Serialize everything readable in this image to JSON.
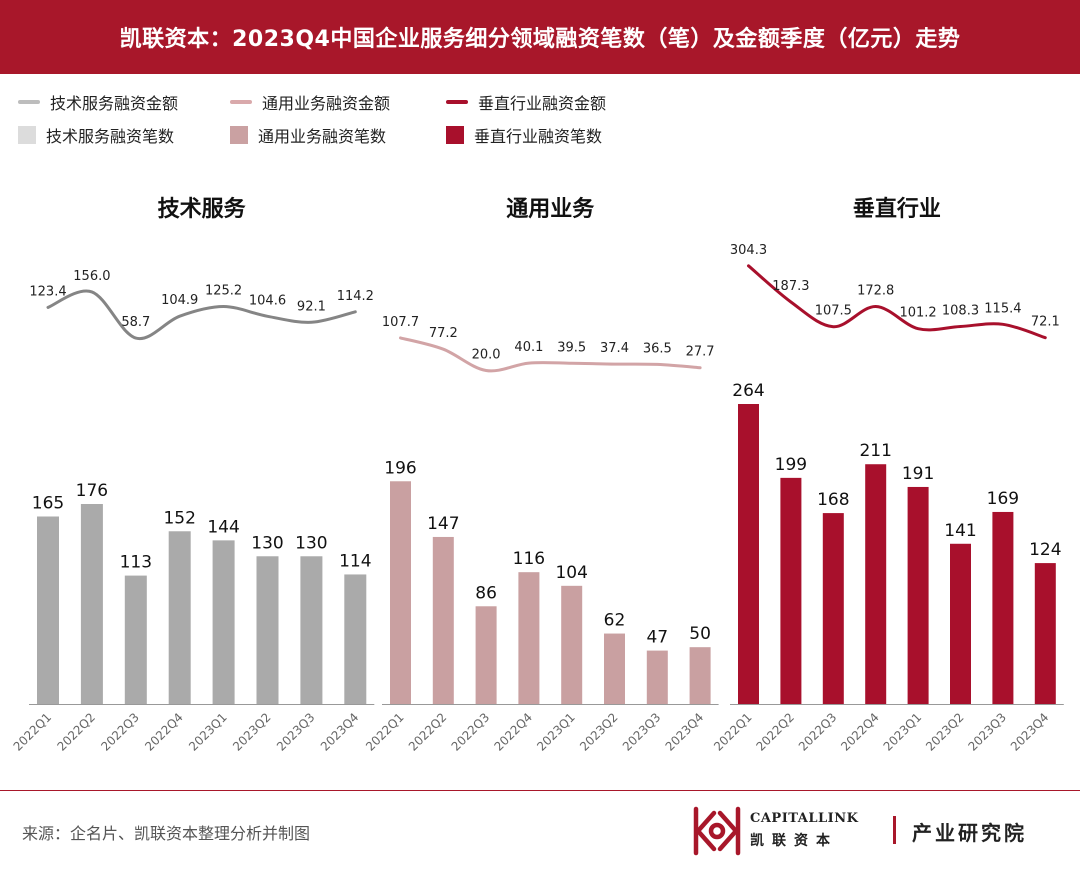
{
  "title": "凯联资本：2023Q4中国企业服务细分领域融资笔数（笔）及金额季度（亿元）走势",
  "legend": [
    {
      "label": "技术服务融资金额",
      "kind": "line",
      "color": "#bdbdbd"
    },
    {
      "label": "通用业务融资金额",
      "kind": "line",
      "color": "#d9a9ab"
    },
    {
      "label": "垂直行业融资金额",
      "kind": "line",
      "color": "#a8102c"
    },
    {
      "label": "技术服务融资笔数",
      "kind": "bar",
      "color": "#dcdcdc"
    },
    {
      "label": "通用业务融资笔数",
      "kind": "bar",
      "color": "#caa1a2"
    },
    {
      "label": "垂直行业融资笔数",
      "kind": "bar",
      "color": "#a8102c"
    }
  ],
  "chart_data": [
    {
      "type": "bar",
      "title": "技术服务",
      "categories": [
        "2022Q1",
        "2022Q2",
        "2022Q3",
        "2022Q4",
        "2023Q1",
        "2023Q2",
        "2023Q3",
        "2023Q4"
      ],
      "series": [
        {
          "name": "技术服务融资笔数",
          "type": "bar",
          "color": "#aaaaaa",
          "values": [
            165,
            176,
            113,
            152,
            144,
            130,
            130,
            114
          ]
        },
        {
          "name": "技术服务融资金额",
          "type": "line",
          "color": "#858585",
          "values": [
            123.4,
            156.0,
            58.7,
            104.9,
            125.2,
            104.6,
            92.1,
            114.2
          ]
        }
      ]
    },
    {
      "type": "bar",
      "title": "通用业务",
      "categories": [
        "2022Q1",
        "2022Q2",
        "2022Q3",
        "2022Q4",
        "2023Q1",
        "2023Q2",
        "2023Q3",
        "2023Q4"
      ],
      "series": [
        {
          "name": "通用业务融资笔数",
          "type": "bar",
          "color": "#c9a0a1",
          "values": [
            196,
            147,
            86,
            116,
            104,
            62,
            47,
            50
          ]
        },
        {
          "name": "通用业务融资金额",
          "type": "line",
          "color": "#d2a4a6",
          "values": [
            107.7,
            77.2,
            20.0,
            40.1,
            39.5,
            37.4,
            36.5,
            27.7
          ]
        }
      ]
    },
    {
      "type": "bar",
      "title": "垂直行业",
      "categories": [
        "2022Q1",
        "2022Q2",
        "2022Q3",
        "2022Q4",
        "2023Q1",
        "2023Q2",
        "2023Q3",
        "2023Q4"
      ],
      "series": [
        {
          "name": "垂直行业融资笔数",
          "type": "bar",
          "color": "#a8102c",
          "values": [
            264,
            199,
            168,
            211,
            191,
            141,
            169,
            124
          ]
        },
        {
          "name": "垂直行业融资金额",
          "type": "line",
          "color": "#a8102c",
          "values": [
            304.3,
            187.3,
            107.5,
            172.8,
            101.2,
            108.3,
            115.4,
            72.1
          ]
        }
      ]
    }
  ],
  "footer": {
    "source": "来源：企名片、凯联资本整理分析并制图",
    "logo_en": "CAPITALLINK",
    "logo_cn": "凯联资本",
    "institute": "产业研究院"
  },
  "colors": {
    "brand": "#a8172a",
    "axis": "#999999"
  }
}
